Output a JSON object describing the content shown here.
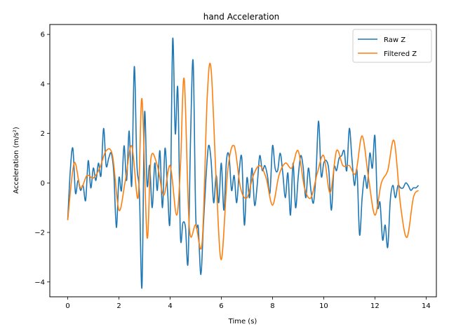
{
  "chart_data": {
    "type": "line",
    "title": "hand Acceleration",
    "xlabel": "Time (s)",
    "ylabel": "Acceleration (m/s²)",
    "xlim": [
      -0.7,
      14.4
    ],
    "ylim": [
      -4.6,
      6.4
    ],
    "xticks": [
      0,
      2,
      4,
      6,
      8,
      10,
      12,
      14
    ],
    "yticks": [
      -4,
      -2,
      0,
      2,
      4,
      6
    ],
    "grid": false,
    "legend_position": "top-right",
    "series": [
      {
        "name": "Raw Z",
        "color": "#1f77b4",
        "x": [
          0,
          0.1,
          0.2,
          0.3,
          0.4,
          0.5,
          0.6,
          0.7,
          0.8,
          0.9,
          1.0,
          1.1,
          1.2,
          1.3,
          1.4,
          1.5,
          1.6,
          1.7,
          1.8,
          1.9,
          2.0,
          2.1,
          2.2,
          2.3,
          2.4,
          2.5,
          2.6,
          2.7,
          2.8,
          2.9,
          3.0,
          3.1,
          3.2,
          3.3,
          3.4,
          3.5,
          3.6,
          3.7,
          3.8,
          3.9,
          4.0,
          4.1,
          4.2,
          4.3,
          4.4,
          4.5,
          4.6,
          4.7,
          4.8,
          4.9,
          5.0,
          5.1,
          5.2,
          5.3,
          5.4,
          5.5,
          5.6,
          5.7,
          5.8,
          5.9,
          6.0,
          6.1,
          6.2,
          6.3,
          6.4,
          6.5,
          6.6,
          6.7,
          6.8,
          6.9,
          7.0,
          7.1,
          7.2,
          7.3,
          7.4,
          7.5,
          7.6,
          7.7,
          7.8,
          7.9,
          8.0,
          8.1,
          8.2,
          8.3,
          8.4,
          8.5,
          8.6,
          8.7,
          8.8,
          8.9,
          9.0,
          9.1,
          9.2,
          9.3,
          9.4,
          9.5,
          9.6,
          9.7,
          9.8,
          9.9,
          10.0,
          10.1,
          10.2,
          10.3,
          10.4,
          10.5,
          10.6,
          10.7,
          10.8,
          10.9,
          11.0,
          11.1,
          11.2,
          11.3,
          11.4,
          11.5,
          11.6,
          11.7,
          11.8,
          11.9,
          12.0,
          12.1,
          12.2,
          12.3,
          12.4,
          12.5,
          12.6,
          12.7,
          12.8,
          12.9,
          13.0,
          13.1,
          13.2,
          13.3,
          13.4,
          13.5,
          13.6,
          13.7
        ],
        "y": [
          -1.5,
          0.5,
          1.4,
          -0.4,
          0.1,
          -0.3,
          -0.1,
          -0.7,
          0.9,
          -0.2,
          0.6,
          0.1,
          0.8,
          0.3,
          2.2,
          0.7,
          1.0,
          1.2,
          0.4,
          -1.8,
          0.2,
          -0.3,
          1.5,
          0.1,
          2.1,
          -0.1,
          4.7,
          0.8,
          -0.4,
          -4.2,
          2.8,
          -0.1,
          0.7,
          -1.0,
          0.8,
          -0.3,
          1.3,
          -1.0,
          1.4,
          -0.3,
          -1.4,
          5.8,
          2.0,
          3.8,
          -2.1,
          -1.6,
          -1.8,
          -3.2,
          1.9,
          4.9,
          -1.3,
          -1.8,
          -3.7,
          -1.7,
          0.2,
          1.5,
          0.9,
          -0.8,
          0.3,
          -0.8,
          0.8,
          -1.1,
          0.9,
          1.1,
          -0.3,
          0.3,
          -0.8,
          0.5,
          1.0,
          -1.7,
          0.2,
          -0.6,
          0.6,
          -0.9,
          -0.1,
          1.1,
          0.5,
          0.7,
          0.3,
          -0.4,
          1.5,
          0.6,
          0.5,
          1.2,
          0.4,
          -0.6,
          0.4,
          -1.3,
          0.8,
          -1.0,
          0.2,
          1.1,
          0.6,
          -0.6,
          0.6,
          -0.3,
          -0.8,
          0.4,
          2.5,
          0.3,
          0.8,
          0.9,
          0.5,
          -1.1,
          0.6,
          0.5,
          1.0,
          1.1,
          1.3,
          0.5,
          2.2,
          1.0,
          -0.1,
          0.5,
          -2.1,
          -0.6,
          0.3,
          -0.2,
          1.2,
          0.6,
          1.9,
          -0.9,
          -0.8,
          -2.3,
          -1.7,
          -2.6,
          -0.7,
          -0.1,
          -0.6,
          -0.1,
          -0.2,
          -0.2,
          0.0,
          -0.1,
          -0.3,
          -0.2,
          -0.2,
          -0.1
        ],
        "raw_dense": true
      },
      {
        "name": "Filtered Z",
        "color": "#ff7f0e",
        "x": [
          0,
          0.25,
          0.5,
          0.75,
          1.0,
          1.25,
          1.5,
          1.75,
          2.0,
          2.25,
          2.5,
          2.75,
          2.9,
          3.1,
          3.25,
          3.5,
          3.75,
          4.0,
          4.25,
          4.4,
          4.55,
          4.75,
          5.0,
          5.25,
          5.45,
          5.6,
          5.8,
          6.0,
          6.25,
          6.5,
          6.75,
          7.0,
          7.25,
          7.5,
          7.75,
          8.0,
          8.25,
          8.5,
          8.75,
          9.0,
          9.25,
          9.5,
          9.75,
          10.0,
          10.25,
          10.5,
          10.75,
          11.0,
          11.25,
          11.5,
          11.75,
          12.0,
          12.25,
          12.5,
          12.75,
          13.0,
          13.25,
          13.5,
          13.7
        ],
        "y": [
          -1.5,
          0.8,
          -0.2,
          0.3,
          0.2,
          0.6,
          1.3,
          1.1,
          -1.1,
          0.1,
          1.5,
          -0.6,
          3.4,
          -2.2,
          1.0,
          0.7,
          -0.5,
          0.7,
          -1.3,
          0.6,
          4.2,
          -1.8,
          -1.7,
          -2.4,
          3.5,
          4.6,
          0.1,
          -3.1,
          0.5,
          1.5,
          -0.2,
          -0.6,
          0.3,
          0.7,
          0.2,
          -0.9,
          0.3,
          0.8,
          0.6,
          1.3,
          -0.2,
          -0.6,
          0.4,
          1.1,
          -0.4,
          1.3,
          0.7,
          0.7,
          0.4,
          1.9,
          0.2,
          -1.3,
          0.0,
          0.5,
          1.7,
          -0.9,
          -2.2,
          -0.6,
          -0.3
        ]
      }
    ]
  }
}
